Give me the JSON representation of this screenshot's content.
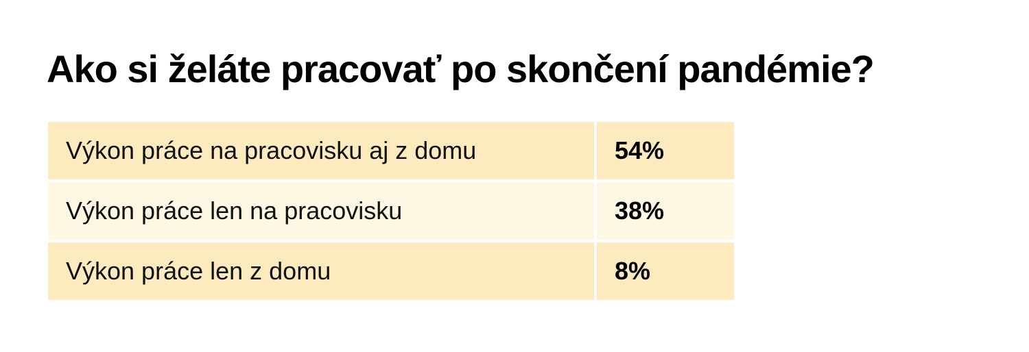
{
  "header": {
    "title": "Ako si želáte pracovať po skončení pandémie?"
  },
  "table": {
    "rows": [
      [
        "Výkon práce na pracovisku aj z domu",
        "54%"
      ],
      [
        "Výkon práce len na pracovisku",
        "38%"
      ],
      [
        "Výkon práce len z domu",
        "8%"
      ]
    ]
  }
}
